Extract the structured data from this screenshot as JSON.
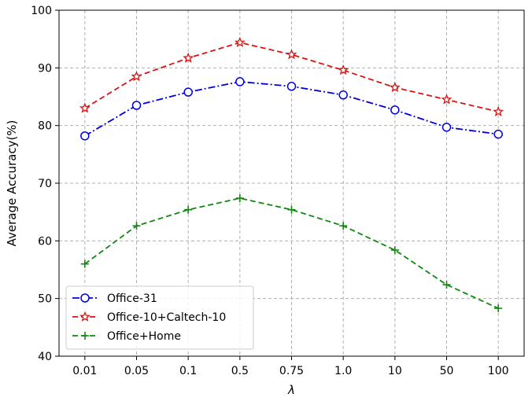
{
  "chart_data": {
    "type": "line",
    "categories": [
      "0.01",
      "0.05",
      "0.1",
      "0.5",
      "0.75",
      "1.0",
      "10",
      "50",
      "100"
    ],
    "xlabel": "λ",
    "ylabel": "Average Accuracy(%)",
    "ylim": [
      40,
      100
    ],
    "yticks": [
      "40",
      "50",
      "60",
      "70",
      "80",
      "90",
      "100"
    ],
    "grid": true,
    "legend_position": "bottom-left",
    "series": [
      {
        "name": "Office-31",
        "values": [
          78.2,
          83.5,
          85.8,
          87.6,
          86.8,
          85.3,
          82.7,
          79.7,
          78.5
        ],
        "color": "#0000dd",
        "line_style": "dash-dot",
        "marker": "circle"
      },
      {
        "name": "Office-10+Caltech-10",
        "values": [
          83.0,
          88.5,
          91.7,
          94.4,
          92.3,
          89.6,
          86.6,
          84.5,
          82.4
        ],
        "color": "#dd1111",
        "line_style": "dashed",
        "marker": "star"
      },
      {
        "name": "Office+Home",
        "values": [
          56.0,
          62.6,
          65.4,
          67.4,
          65.4,
          62.6,
          58.4,
          52.4,
          48.3
        ],
        "color": "#118811",
        "line_style": "dashed",
        "marker": "plus"
      }
    ]
  }
}
